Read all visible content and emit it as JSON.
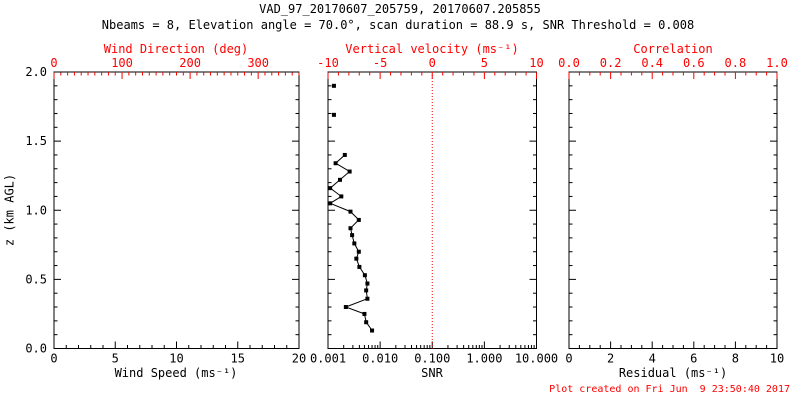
{
  "title": "VAD_97_20170607_205759, 20170607.205855",
  "subtitle": "Nbeams = 8, Elevation angle = 70.0°, scan duration = 88.9 s, SNR Threshold = 0.008",
  "footer": {
    "created_text": "Plot created on Fri Jun  9 23:50:40 2017"
  },
  "colors": {
    "primary_axis": "#000000",
    "secondary_axis": "#ff0000",
    "data": "#000000",
    "reference_line": "#ff0000",
    "background": "#ffffff"
  },
  "y_axis": {
    "label": "z (km AGL)",
    "min": 0.0,
    "max": 2.0,
    "ticks": [
      0.0,
      0.5,
      1.0,
      1.5,
      2.0
    ],
    "labels": [
      "0.0",
      "0.5",
      "1.0",
      "1.5",
      "2.0"
    ],
    "minor_step": 0.1
  },
  "chart_data": [
    {
      "id": "wind-speed-panel",
      "type": "line",
      "bottom_axis": {
        "label": "Wind Speed (ms⁻¹)",
        "scale": "linear",
        "min": 0,
        "max": 20,
        "ticks": [
          0,
          5,
          10,
          15,
          20
        ],
        "labels": [
          "0",
          "5",
          "10",
          "15",
          "20"
        ],
        "minor_step": 1
      },
      "top_axis": {
        "label": "Wind Direction (deg)",
        "scale": "linear",
        "min": 0,
        "max": 360,
        "ticks": [
          0,
          100,
          200,
          300
        ],
        "labels": [
          "0",
          "100",
          "200",
          "300"
        ],
        "minor_step": 10
      },
      "series": []
    },
    {
      "id": "snr-panel",
      "type": "line",
      "bottom_axis": {
        "label": "SNR",
        "scale": "log",
        "min": 0.001,
        "max": 10.0,
        "ticks": [
          0.001,
          0.01,
          0.1,
          1.0,
          10.0
        ],
        "labels": [
          "0.001",
          "0.010",
          "0.100",
          "1.000",
          "10.000"
        ]
      },
      "top_axis": {
        "label": "Vertical velocity (ms⁻¹)",
        "scale": "linear",
        "min": -10,
        "max": 10,
        "ticks": [
          -10,
          -5,
          0,
          5,
          10
        ],
        "labels": [
          "-10",
          "-5",
          "0",
          "5",
          "10"
        ],
        "minor_step": 1
      },
      "reference_line": {
        "top_axis_value": 0,
        "style": "dotted"
      },
      "series": [
        {
          "name": "snr-isolated-points",
          "marker": "square",
          "connected": false,
          "snr": [
            0.0013,
            0.0013
          ],
          "z": [
            1.9,
            1.69
          ]
        },
        {
          "name": "snr-profile",
          "marker": "square",
          "connected": true,
          "snr": [
            0.0021,
            0.0014,
            0.0026,
            0.0017,
            0.0011,
            0.0018,
            0.0011,
            0.0027,
            0.0039,
            0.0027,
            0.0029,
            0.0032,
            0.0039,
            0.0035,
            0.004,
            0.0051,
            0.0057,
            0.0054,
            0.0057,
            0.0022,
            0.005,
            0.0054,
            0.007
          ],
          "z": [
            1.4,
            1.34,
            1.28,
            1.22,
            1.16,
            1.1,
            1.05,
            0.99,
            0.93,
            0.87,
            0.82,
            0.76,
            0.7,
            0.65,
            0.59,
            0.53,
            0.47,
            0.42,
            0.36,
            0.3,
            0.25,
            0.19,
            0.13
          ]
        }
      ]
    },
    {
      "id": "residual-panel",
      "type": "line",
      "bottom_axis": {
        "label": "Residual (ms⁻¹)",
        "scale": "linear",
        "min": 0,
        "max": 10,
        "ticks": [
          0,
          2,
          4,
          6,
          8,
          10
        ],
        "labels": [
          "0",
          "2",
          "4",
          "6",
          "8",
          "10"
        ],
        "minor_step": 0.5
      },
      "top_axis": {
        "label": "Correlation",
        "scale": "linear",
        "min": 0.0,
        "max": 1.0,
        "ticks": [
          0.0,
          0.2,
          0.4,
          0.6,
          0.8,
          1.0
        ],
        "labels": [
          "0.0",
          "0.2",
          "0.4",
          "0.6",
          "0.8",
          "1.0"
        ],
        "minor_step": 0.05
      },
      "series": []
    }
  ]
}
